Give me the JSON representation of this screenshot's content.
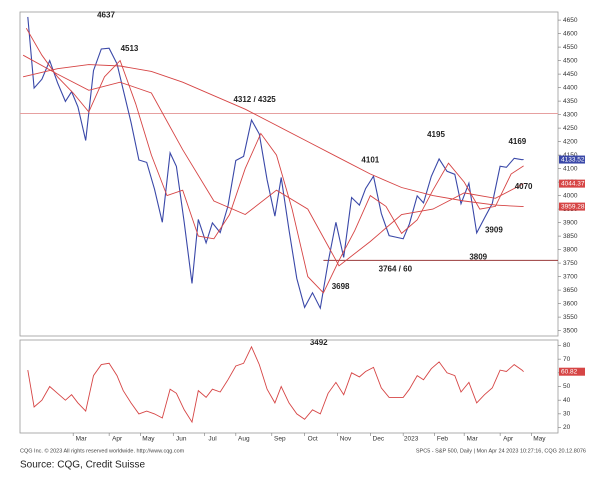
{
  "chart_data": [
    {
      "type": "line",
      "xlim": [
        -4,
        340
      ],
      "ylim": [
        3480,
        4680
      ],
      "yticks": [
        3500,
        3550,
        3600,
        3650,
        3700,
        3750,
        3800,
        3850,
        3900,
        3950,
        4000,
        4050,
        4100,
        4150,
        4200,
        4250,
        4300,
        4350,
        4400,
        4450,
        4500,
        4550,
        4600,
        4650
      ],
      "series": [
        {
          "color": "#3a48a8",
          "end_tag": true,
          "x": [
            1,
            5,
            10,
            15,
            20,
            25,
            29,
            33,
            38,
            43,
            48,
            53,
            58,
            62,
            67,
            72,
            77,
            82,
            87,
            92,
            96,
            101,
            106,
            110,
            115,
            119,
            124,
            129,
            134,
            139,
            144,
            149,
            154,
            159,
            163,
            168,
            173,
            178,
            183,
            188,
            193,
            198,
            203,
            208,
            213,
            217,
            222,
            227,
            232,
            237,
            241,
            245,
            250,
            254,
            259,
            264,
            269,
            274,
            278,
            283,
            288,
            293,
            298,
            303,
            307,
            312,
            317,
            318
          ],
          "values": [
            4662,
            4398,
            4431,
            4500,
            4418,
            4349,
            4385,
            4329,
            4204,
            4463,
            4543,
            4546,
            4488,
            4392,
            4272,
            4132,
            4123,
            4024,
            3901,
            4158,
            4108,
            3901,
            3675,
            3912,
            3825,
            3899,
            3863,
            3962,
            4130,
            4145,
            4280,
            4228,
            4058,
            3924,
            4067,
            3873,
            3693,
            3586,
            3640,
            3583,
            3753,
            3901,
            3771,
            3993,
            3965,
            4026,
            4072,
            3934,
            3852,
            3845,
            3840,
            3895,
            3999,
            3973,
            4071,
            4136,
            4090,
            4079,
            3970,
            4046,
            3862,
            3917,
            3971,
            4109,
            4105,
            4138,
            4133,
            4133.52
          ]
        },
        {
          "color": "#d64545",
          "x": [
            0,
            10,
            20,
            30,
            40,
            50,
            60,
            70,
            80,
            90,
            100,
            110,
            120,
            130,
            140,
            150,
            160,
            170,
            180,
            190,
            200,
            210,
            220,
            230,
            240,
            250,
            260,
            270,
            280,
            290,
            300,
            310,
            318
          ],
          "values": [
            4620,
            4520,
            4440,
            4380,
            4310,
            4440,
            4500,
            4340,
            4150,
            4000,
            4020,
            3850,
            3840,
            3930,
            4100,
            4230,
            4150,
            3950,
            3700,
            3640,
            3760,
            3870,
            4000,
            3960,
            3860,
            3910,
            4020,
            4120,
            4050,
            3950,
            3960,
            4080,
            4110
          ]
        },
        {
          "color": "#d64545",
          "end_tag": true,
          "x": [
            -2,
            20,
            40,
            60,
            80,
            100,
            120,
            140,
            160,
            180,
            200,
            220,
            240,
            260,
            280,
            300,
            318
          ],
          "values": [
            4520,
            4450,
            4390,
            4420,
            4380,
            4170,
            3980,
            3930,
            4020,
            3950,
            3740,
            3830,
            3930,
            3950,
            4010,
            3990,
            4044.37
          ]
        },
        {
          "color": "#d64545",
          "end_tag": true,
          "x": [
            -2,
            20,
            40,
            60,
            80,
            100,
            120,
            140,
            160,
            180,
            200,
            220,
            240,
            260,
            280,
            300,
            318
          ],
          "values": [
            4440,
            4470,
            4485,
            4480,
            4460,
            4420,
            4370,
            4320,
            4260,
            4200,
            4140,
            4080,
            4030,
            4000,
            3980,
            3965,
            3959.28
          ]
        }
      ],
      "levels": [
        {
          "value": 4304,
          "from": -4,
          "color": "#e6a0a0"
        },
        {
          "value": 3760,
          "from": 190,
          "color": "#9a3a3a"
        }
      ],
      "annotations": [
        {
          "text": "4637",
          "x": 51,
          "y": 4637,
          "pos": "above"
        },
        {
          "text": "4513",
          "x": 66,
          "y": 4513,
          "pos": "above"
        },
        {
          "text": "4312 / 4325",
          "x": 146,
          "y": 4325,
          "pos": "above"
        },
        {
          "text": "3698",
          "x": 201,
          "y": 3698,
          "pos": "below"
        },
        {
          "text": "3492",
          "x": 187,
          "y": 3492,
          "pos": "below"
        },
        {
          "text": "4101",
          "x": 220,
          "y": 4101,
          "pos": "above"
        },
        {
          "text": "3764 / 60",
          "x": 236,
          "y": 3764,
          "pos": "below"
        },
        {
          "text": "4195",
          "x": 262,
          "y": 4195,
          "pos": "above"
        },
        {
          "text": "3809",
          "x": 289,
          "y": 3809,
          "pos": "below"
        },
        {
          "text": "3909",
          "x": 299,
          "y": 3909,
          "pos": "below"
        },
        {
          "text": "4169",
          "x": 314,
          "y": 4169,
          "pos": "above"
        },
        {
          "text": "4070",
          "x": 318,
          "y": 4070,
          "pos": "below"
        }
      ]
    },
    {
      "type": "line",
      "xlim": [
        -4,
        340
      ],
      "ylim": [
        16,
        84
      ],
      "yticks": [
        20,
        30,
        40,
        50,
        60,
        70,
        80
      ],
      "xticks": [
        {
          "value": 30,
          "label": "Mar"
        },
        {
          "value": 53,
          "label": "Apr"
        },
        {
          "value": 73,
          "label": "May"
        },
        {
          "value": 94,
          "label": "Jun"
        },
        {
          "value": 114,
          "label": "Jul"
        },
        {
          "value": 134,
          "label": "Aug"
        },
        {
          "value": 157,
          "label": "Sep"
        },
        {
          "value": 178,
          "label": "Oct"
        },
        {
          "value": 199,
          "label": "Nov"
        },
        {
          "value": 220,
          "label": "Dec"
        },
        {
          "value": 241,
          "label": "2023"
        },
        {
          "value": 261,
          "label": "Feb"
        },
        {
          "value": 280,
          "label": "Mar"
        },
        {
          "value": 303,
          "label": "Apr"
        },
        {
          "value": 323,
          "label": "May"
        }
      ],
      "series": [
        {
          "color": "#d64545",
          "end_tag": true,
          "x": [
            1,
            5,
            10,
            15,
            20,
            25,
            29,
            33,
            38,
            43,
            48,
            53,
            58,
            62,
            67,
            72,
            77,
            82,
            87,
            92,
            96,
            101,
            106,
            110,
            115,
            119,
            124,
            129,
            134,
            139,
            144,
            149,
            154,
            159,
            163,
            168,
            173,
            178,
            183,
            188,
            193,
            198,
            203,
            208,
            213,
            217,
            222,
            227,
            232,
            237,
            241,
            245,
            250,
            254,
            259,
            264,
            269,
            274,
            278,
            283,
            288,
            293,
            298,
            303,
            307,
            312,
            317,
            318
          ],
          "values": [
            62,
            35,
            40,
            50,
            45,
            40,
            44,
            38,
            32,
            58,
            66,
            67,
            58,
            47,
            38,
            30,
            32,
            30,
            27,
            48,
            45,
            33,
            24,
            47,
            42,
            48,
            46,
            55,
            65,
            67,
            79,
            66,
            48,
            38,
            50,
            38,
            30,
            26,
            33,
            30,
            45,
            53,
            44,
            60,
            57,
            61,
            64,
            49,
            42,
            42,
            42,
            48,
            58,
            55,
            63,
            68,
            60,
            58,
            46,
            53,
            38,
            44,
            49,
            62,
            61,
            66,
            62,
            60.82
          ]
        }
      ]
    }
  ],
  "footer": {
    "copyright": "CQG Inc. © 2023 All rights reserved worldwide. http://www.cqg.com",
    "info": "SPC5 - S&P 500, Daily | Mon Apr 24 2023 10:27:16, CQG 20.12.8076",
    "source": "Source: CQG, Credit Suisse"
  }
}
